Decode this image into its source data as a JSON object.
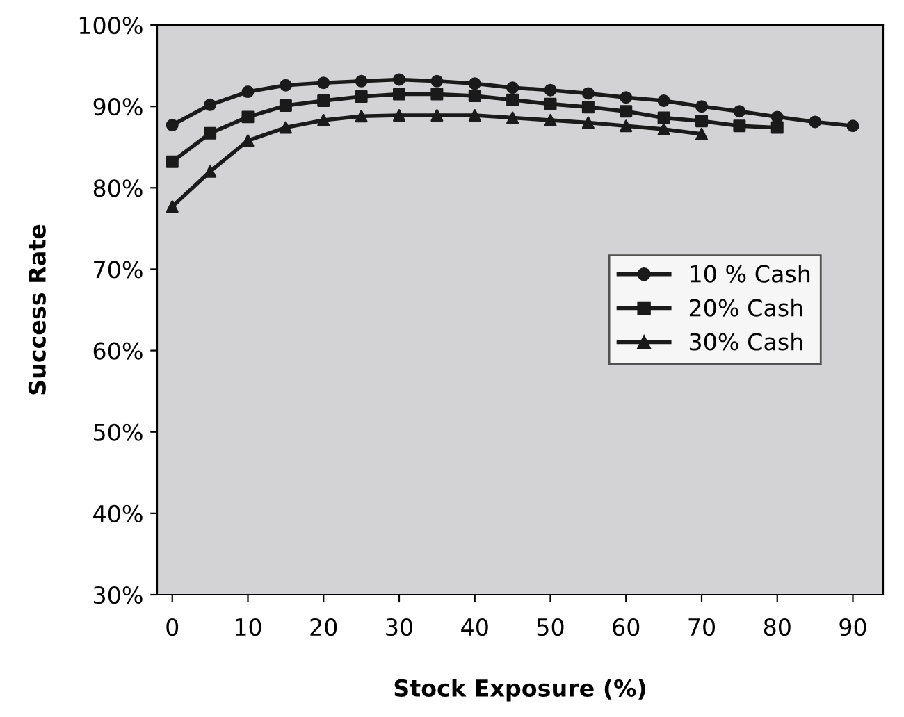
{
  "chart_data": {
    "type": "line",
    "xlabel": "Stock Exposure (%)",
    "ylabel": "Success Rate",
    "x": [
      0,
      5,
      10,
      15,
      20,
      25,
      30,
      35,
      40,
      45,
      50,
      55,
      60,
      65,
      70,
      75,
      80,
      85,
      90
    ],
    "series": [
      {
        "name": "10 % Cash",
        "color": "#1a1a1a",
        "marker": "circle",
        "values": [
          87.7,
          90.2,
          91.8,
          92.6,
          92.9,
          93.1,
          93.3,
          93.1,
          92.8,
          92.3,
          92.0,
          91.6,
          91.1,
          90.7,
          90.0,
          89.4,
          88.7,
          88.1,
          87.6
        ]
      },
      {
        "name": "20% Cash",
        "color": "#1a1a1a",
        "marker": "square",
        "values": [
          83.2,
          86.7,
          88.7,
          90.1,
          90.7,
          91.2,
          91.5,
          91.5,
          91.3,
          90.8,
          90.3,
          89.9,
          89.4,
          88.6,
          88.2,
          87.6,
          87.4,
          null,
          null
        ]
      },
      {
        "name": "30% Cash",
        "color": "#1a1a1a",
        "marker": "triangle",
        "values": [
          77.7,
          82.0,
          85.8,
          87.4,
          88.3,
          88.8,
          88.9,
          88.9,
          88.9,
          88.6,
          88.3,
          88.0,
          87.6,
          87.2,
          86.6,
          null,
          null,
          null,
          null
        ]
      }
    ],
    "xlim": [
      -2,
      94
    ],
    "xticks": [
      0,
      10,
      20,
      30,
      40,
      50,
      60,
      70,
      80,
      90
    ],
    "ylim": [
      30,
      100
    ],
    "yticks": [
      {
        "value": 30,
        "label": "30%"
      },
      {
        "value": 40,
        "label": "40%"
      },
      {
        "value": 50,
        "label": "50%"
      },
      {
        "value": 60,
        "label": "60%"
      },
      {
        "value": 70,
        "label": "70%"
      },
      {
        "value": 80,
        "label": "80%"
      },
      {
        "value": 90,
        "label": "90%"
      },
      {
        "value": 100,
        "label": "100%"
      }
    ],
    "grid": false,
    "legend": "right",
    "line_style": "solid"
  }
}
